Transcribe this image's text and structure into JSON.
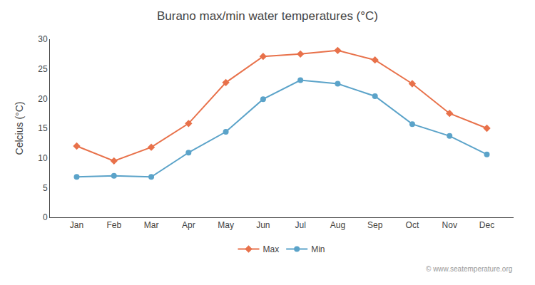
{
  "chart_data": {
    "type": "line",
    "title": "Burano max/min water temperatures (°C)",
    "y_label": "Celcius (°C)",
    "categories": [
      "Jan",
      "Feb",
      "Mar",
      "Apr",
      "May",
      "Jun",
      "Jul",
      "Aug",
      "Sep",
      "Oct",
      "Nov",
      "Dec"
    ],
    "series": [
      {
        "name": "Max",
        "color": "#e8714a",
        "marker": "diamond",
        "values": [
          12.0,
          9.5,
          11.8,
          15.8,
          22.7,
          27.1,
          27.5,
          28.1,
          26.5,
          22.5,
          17.5,
          15.0
        ]
      },
      {
        "name": "Min",
        "color": "#5ba3c9",
        "marker": "circle",
        "values": [
          6.8,
          7.0,
          6.8,
          10.9,
          14.4,
          19.9,
          23.1,
          22.5,
          20.4,
          15.7,
          13.7,
          10.6
        ]
      }
    ],
    "ylim": [
      0,
      30
    ],
    "yticks": [
      0,
      5,
      10,
      15,
      20,
      25,
      30
    ],
    "grid": false,
    "legend": "bottom",
    "annotations": [
      "© www.seatemperature.org"
    ]
  }
}
